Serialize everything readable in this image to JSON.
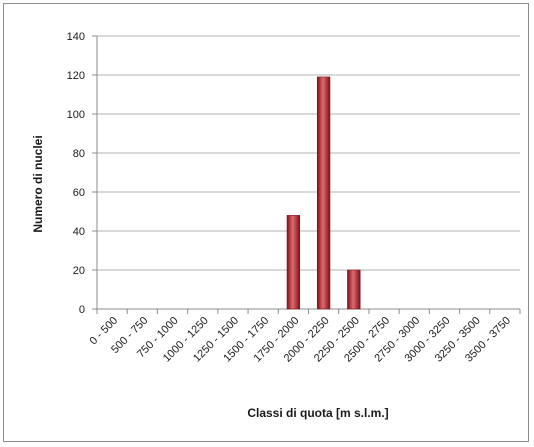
{
  "chart_data": {
    "type": "bar",
    "title": "",
    "xlabel": "Classi di quota [m s.l.m.]",
    "ylabel": "Numero di nuclei",
    "categories": [
      "0 - 500",
      "500 - 750",
      "750 - 1000",
      "1000 - 1250",
      "1250 - 1500",
      "1500 - 1750",
      "1750 - 2000",
      "2000 - 2250",
      "2250 - 2500",
      "2500 - 2750",
      "2750 - 3000",
      "3000 - 3250",
      "3250 - 3500",
      "3500 - 3750"
    ],
    "values": [
      0,
      0,
      0,
      0,
      0,
      0,
      48,
      119,
      20,
      0,
      0,
      0,
      0,
      0
    ],
    "ylim": [
      0,
      140
    ],
    "yticks": [
      0,
      20,
      40,
      60,
      80,
      100,
      120,
      140
    ],
    "grid": true,
    "legend": "none",
    "bar_color": "#b8232b",
    "bar_color_light": "#e06a6f",
    "bar_color_dark": "#7d1117"
  }
}
